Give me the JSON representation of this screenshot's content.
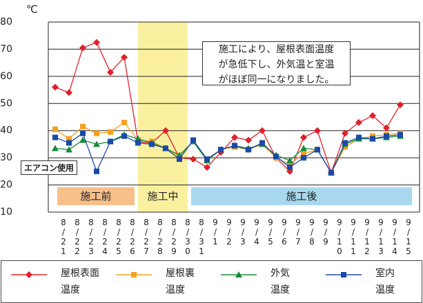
{
  "chart_data": {
    "type": "line",
    "unit_label": "℃",
    "categories": [
      "8/21",
      "8/22",
      "8/23",
      "8/24",
      "8/25",
      "8/26",
      "8/27",
      "8/28",
      "8/29",
      "8/30",
      "8/31",
      "9/1",
      "9/2",
      "9/3",
      "9/4",
      "9/5",
      "9/6",
      "9/7",
      "9/8",
      "9/9",
      "9/10",
      "9/11",
      "9/12",
      "9/13",
      "9/14",
      "9/15"
    ],
    "series": [
      {
        "name": "屋根表面\n温度",
        "color": "#e0202a",
        "marker": "diamond",
        "values": [
          56,
          54,
          70.5,
          72.5,
          61.5,
          67,
          36,
          35.5,
          40,
          30,
          29.5,
          26.5,
          32,
          37.5,
          36.5,
          40,
          30,
          25,
          37.5,
          40,
          24.5,
          39,
          43,
          45.5,
          41,
          49.5
        ]
      },
      {
        "name": "屋根裏\n温度",
        "color": "#f4a020",
        "marker": "square",
        "values": [
          40.5,
          37,
          41.5,
          39,
          39.5,
          43,
          36.5,
          36,
          33.5,
          30.5,
          36,
          29,
          33,
          34,
          33,
          35,
          30,
          27.5,
          31.5,
          33,
          24.5,
          34,
          37,
          38,
          38.5,
          39
        ]
      },
      {
        "name": "外気\n温度",
        "color": "#1a8a3a",
        "marker": "triangle",
        "values": [
          33.5,
          33,
          36.5,
          35,
          36,
          38.5,
          37,
          35.5,
          33.5,
          31,
          36,
          29,
          33,
          34.5,
          33.5,
          35,
          31,
          29,
          33.5,
          33,
          24.5,
          35,
          37,
          37,
          37.5,
          38
        ]
      },
      {
        "name": "室内\n温度",
        "color": "#1a4aa8",
        "marker": "square",
        "values": [
          37.5,
          35.5,
          39,
          25,
          36,
          38,
          35.5,
          35,
          33.5,
          29.5,
          36.5,
          29.5,
          33,
          34.5,
          33,
          35.5,
          30.5,
          26.5,
          30,
          33,
          24.5,
          35.5,
          37.5,
          37,
          38,
          38.5
        ]
      }
    ],
    "ylim": [
      10,
      80
    ],
    "yticks": [
      10,
      20,
      30,
      40,
      50,
      60,
      70,
      80
    ],
    "grid": true,
    "phases": [
      "施工前",
      "施工中",
      "施工後"
    ],
    "annotation": "施工により、屋根表面温度\nが急低下し、外気温と室温\nがほぼ同一になりました。",
    "callout": "エアコン使用"
  }
}
